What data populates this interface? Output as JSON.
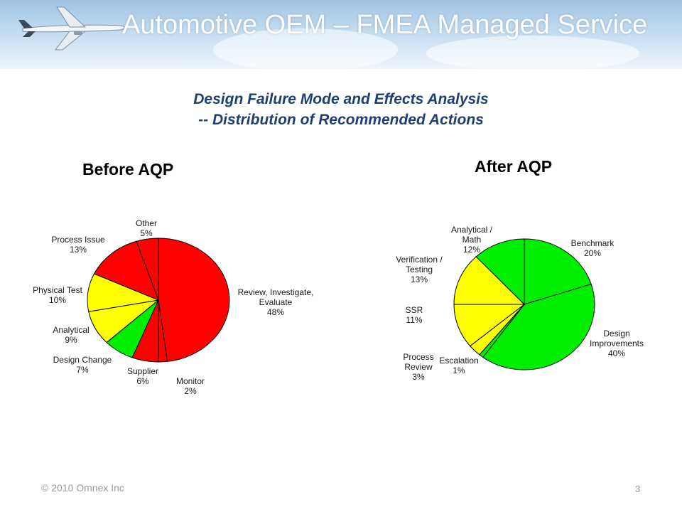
{
  "header": {
    "title": "Automotive OEM – FMEA Managed Service",
    "subtitle_line1": "Design Failure Mode and Effects Analysis",
    "subtitle_line2": "-- Distribution of Recommended Actions"
  },
  "footer": {
    "copyright": "© 2010 Omnex Inc",
    "page_number": "3"
  },
  "colors": {
    "red": "#ff0000",
    "green": "#00ee00",
    "yellow": "#ffff00",
    "title_blue": "#1f3f72"
  },
  "chart_data": [
    {
      "type": "pie",
      "title": "Before AQP",
      "slices": [
        {
          "label": [
            "Review, Investigate,",
            "Evaluate",
            "",
            "48%"
          ],
          "value": 48,
          "color": "#ff0000"
        },
        {
          "label": [
            "Monitor",
            "2%"
          ],
          "value": 2,
          "color": "#ff0000"
        },
        {
          "label": [
            "Supplier",
            "6%"
          ],
          "value": 6,
          "color": "#ff0000"
        },
        {
          "label": [
            "Design Change",
            "7%"
          ],
          "value": 7,
          "color": "#00ee00"
        },
        {
          "label": [
            "Analytical",
            "9%"
          ],
          "value": 9,
          "color": "#ffff00"
        },
        {
          "label": [
            "Physical Test",
            "10%"
          ],
          "value": 10,
          "color": "#ffff00"
        },
        {
          "label": [
            "Process Issue",
            "13%"
          ],
          "value": 13,
          "color": "#ff0000"
        },
        {
          "label": [
            "Other",
            "5%"
          ],
          "value": 5,
          "color": "#ff0000"
        }
      ]
    },
    {
      "type": "pie",
      "title": "After AQP",
      "slices": [
        {
          "label": [
            "Benchmark",
            "20%"
          ],
          "value": 20,
          "color": "#00ee00"
        },
        {
          "label": [
            "Design",
            "Improvements",
            "40%"
          ],
          "value": 40,
          "color": "#00ee00"
        },
        {
          "label": [
            "Escalation",
            "1%"
          ],
          "value": 1,
          "color": "#00ee00"
        },
        {
          "label": [
            "Process",
            "Review",
            "3%"
          ],
          "value": 3,
          "color": "#ffff00"
        },
        {
          "label": [
            "SSR",
            "11%"
          ],
          "value": 11,
          "color": "#ffff00"
        },
        {
          "label": [
            "Verification /",
            "Testing",
            "13%"
          ],
          "value": 13,
          "color": "#ffff00"
        },
        {
          "label": [
            "Analytical /",
            "Math",
            "12%"
          ],
          "value": 12,
          "color": "#00ee00"
        }
      ]
    }
  ]
}
